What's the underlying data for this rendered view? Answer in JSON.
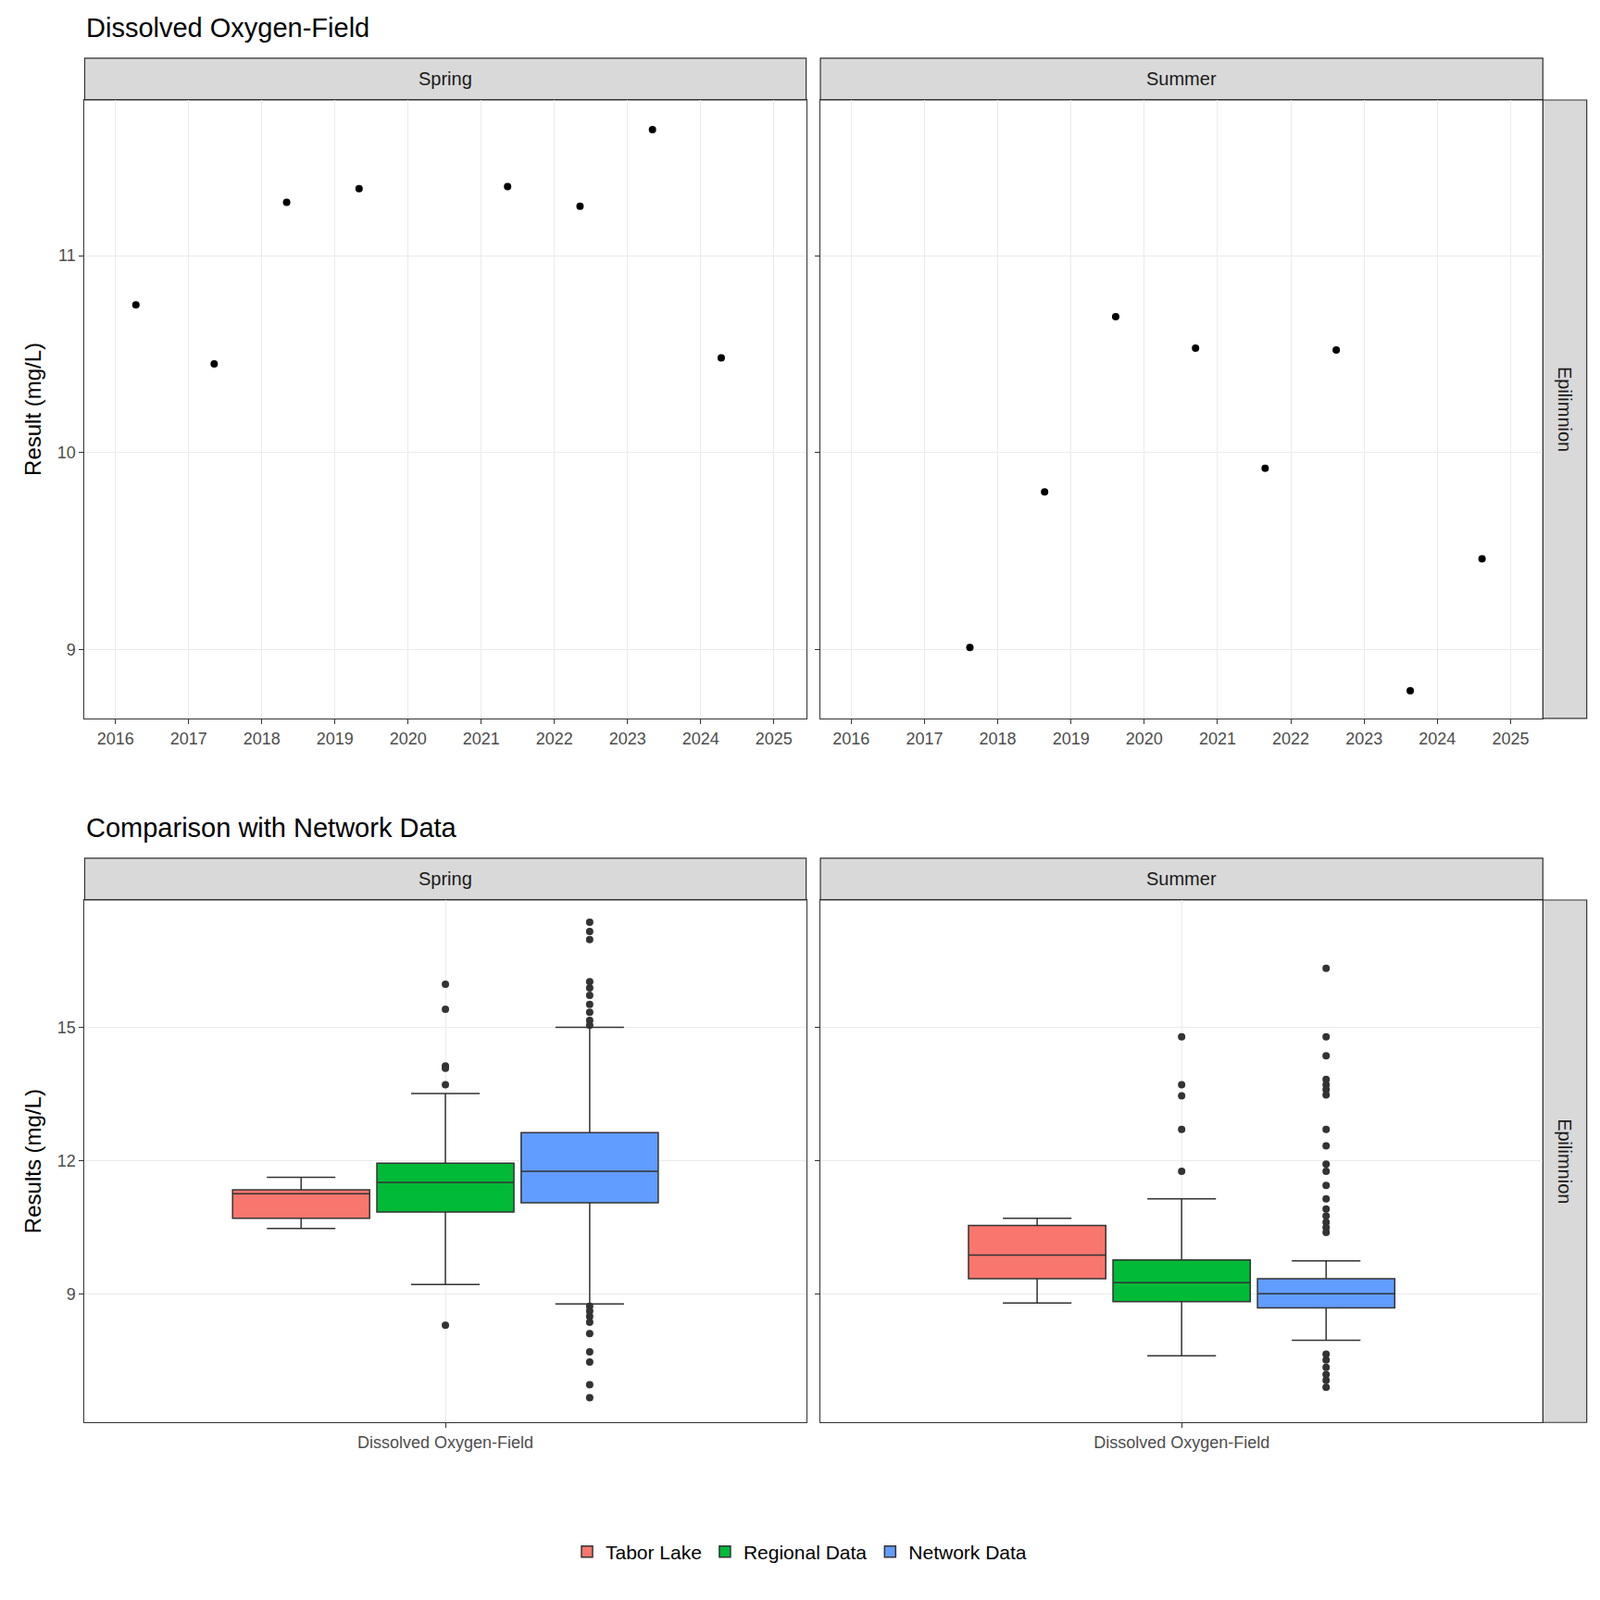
{
  "chart_data": [
    {
      "type": "scatter",
      "title": "Dissolved Oxygen-Field",
      "panel_label": "Spring",
      "ylabel": "Result (mg/L)",
      "color": "#000000",
      "grid": true,
      "x": [
        2016.28,
        2017.35,
        2018.34,
        2019.33,
        2021.36,
        2022.35,
        2023.34,
        2024.28
      ],
      "values": [
        10.75,
        10.45,
        11.27,
        11.34,
        11.35,
        11.25,
        11.64,
        10.48
      ],
      "xlim": [
        2015.58,
        2025.44
      ],
      "xticks": [
        2016,
        2017,
        2018,
        2019,
        2020,
        2021,
        2022,
        2023,
        2024,
        2025
      ],
      "ylim": [
        8.65,
        11.79
      ],
      "yticks": [
        9,
        10,
        11
      ]
    },
    {
      "type": "scatter",
      "panel_label": "Summer",
      "row_label": "Epilimnion",
      "color": "#000000",
      "grid": true,
      "tick_labels": "x",
      "x": [
        2017.62,
        2018.64,
        2019.61,
        2020.7,
        2021.65,
        2022.62,
        2023.63,
        2024.61
      ],
      "values": [
        9.01,
        9.8,
        10.69,
        10.53,
        9.92,
        10.52,
        8.79,
        9.46
      ],
      "xlim": [
        2015.58,
        2025.44
      ],
      "xticks": [
        2016,
        2017,
        2018,
        2019,
        2020,
        2021,
        2022,
        2023,
        2024,
        2025
      ],
      "ylim": [
        8.65,
        11.79
      ],
      "yticks": [
        9,
        10,
        11
      ]
    },
    {
      "type": "box",
      "title": "Comparison with Network Data",
      "panel_label": "Spring",
      "ylabel": "Results (mg/L)",
      "grid": true,
      "legend": "bottom",
      "categories": [
        "Dissolved Oxygen-Field"
      ],
      "ylim": [
        6.1,
        17.87
      ],
      "yticks": [
        9,
        12,
        15
      ],
      "series": [
        {
          "name": "Tabor Lake",
          "color": "#F8766D",
          "q1": 10.7,
          "median": 11.25,
          "q3": 11.34,
          "lowerfence": 10.47,
          "upperfence": 11.62,
          "outliers": []
        },
        {
          "name": "Regional Data",
          "color": "#00BA38",
          "q1": 10.84,
          "median": 11.51,
          "q3": 11.94,
          "lowerfence": 9.21,
          "upperfence": 13.51,
          "outliers": [
            15.97,
            15.41,
            14.13,
            14.08,
            13.71,
            8.29
          ]
        },
        {
          "name": "Network Data",
          "color": "#619CFF",
          "q1": 11.05,
          "median": 11.76,
          "q3": 12.63,
          "lowerfence": 8.77,
          "upperfence": 15.0,
          "outliers": [
            17.37,
            17.16,
            16.98,
            16.03,
            15.89,
            15.72,
            15.52,
            15.34,
            15.16,
            15.05,
            8.72,
            8.61,
            8.49,
            8.36,
            8.1,
            7.69,
            7.46,
            6.95,
            6.66
          ]
        }
      ]
    },
    {
      "type": "box",
      "panel_label": "Summer",
      "row_label": "Epilimnion",
      "grid": true,
      "tick_labels": "x",
      "categories": [
        "Dissolved Oxygen-Field"
      ],
      "ylim": [
        6.1,
        17.87
      ],
      "yticks": [
        9,
        12,
        15
      ],
      "series": [
        {
          "name": "Tabor Lake",
          "color": "#F8766D",
          "q1": 9.34,
          "median": 9.87,
          "q3": 10.54,
          "lowerfence": 8.79,
          "upperfence": 10.7,
          "outliers": []
        },
        {
          "name": "Regional Data",
          "color": "#00BA38",
          "q1": 8.82,
          "median": 9.25,
          "q3": 9.76,
          "lowerfence": 7.6,
          "upperfence": 11.14,
          "outliers": [
            14.79,
            13.71,
            13.46,
            12.7,
            11.76
          ]
        },
        {
          "name": "Network Data",
          "color": "#619CFF",
          "q1": 8.68,
          "median": 9.0,
          "q3": 9.34,
          "lowerfence": 7.95,
          "upperfence": 9.74,
          "outliers": [
            16.33,
            14.79,
            14.36,
            13.83,
            13.71,
            13.6,
            13.48,
            12.7,
            12.33,
            11.92,
            11.76,
            11.44,
            11.14,
            10.91,
            10.75,
            10.61,
            10.49,
            10.38,
            7.64,
            7.51,
            7.34,
            7.18,
            7.05,
            6.89
          ]
        }
      ]
    }
  ]
}
